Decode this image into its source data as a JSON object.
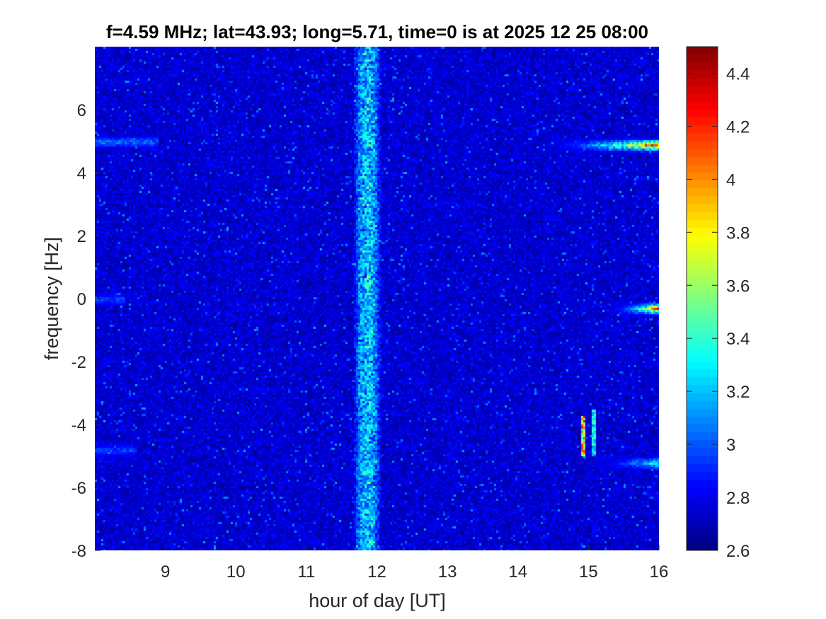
{
  "chart_data": {
    "type": "heatmap",
    "title": "f=4.59 MHz;  lat=43.93; long=5.71, time=0 is at 2025 12 25 08:00",
    "xlabel": "hour of day [UT]",
    "ylabel": "frequency [Hz]",
    "xlim": [
      8,
      16
    ],
    "ylim": [
      -8,
      8
    ],
    "xticks": [
      9,
      10,
      11,
      12,
      13,
      14,
      15,
      16
    ],
    "yticks": [
      -8,
      -6,
      -4,
      -2,
      0,
      2,
      4,
      6
    ],
    "colormap": "jet",
    "clim": [
      2.6,
      4.5
    ],
    "colorbar_ticks": [
      2.6,
      2.8,
      3,
      3.2,
      3.4,
      3.6,
      3.8,
      4,
      4.2,
      4.4
    ],
    "background_level": 2.75,
    "features": [
      {
        "kind": "vertical_band",
        "x_center": 11.85,
        "x_halfwidth": 0.2,
        "peak_level": 3.3
      },
      {
        "kind": "horizontal_line",
        "y": 5.0,
        "x_from": 8.0,
        "x_to": 8.9,
        "level": 3.1
      },
      {
        "kind": "horizontal_line",
        "y": 0.0,
        "x_from": 8.0,
        "x_to": 8.4,
        "level": 3.0
      },
      {
        "kind": "horizontal_line",
        "y": -4.8,
        "x_from": 8.0,
        "x_to": 8.6,
        "level": 3.0
      },
      {
        "kind": "horizontal_line",
        "y": 4.9,
        "x_from": 14.4,
        "x_to": 16.0,
        "peak_level": 4.3
      },
      {
        "kind": "horizontal_line",
        "y": -0.3,
        "x_from": 15.3,
        "x_to": 16.0,
        "peak_level": 4.3
      },
      {
        "kind": "horizontal_line",
        "y": -5.2,
        "x_from": 15.1,
        "x_to": 16.0,
        "peak_level": 3.5
      },
      {
        "kind": "vertical_streak",
        "x": 14.92,
        "y_from": -5.0,
        "y_to": -3.7,
        "peak_level": 4.3
      },
      {
        "kind": "vertical_streak",
        "x": 15.05,
        "y_from": -5.0,
        "y_to": -3.5,
        "peak_level": 3.5
      }
    ]
  }
}
